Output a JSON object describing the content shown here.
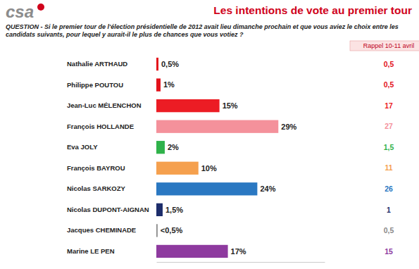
{
  "chart_data": {
    "type": "bar",
    "orientation": "horizontal",
    "logo": "csa",
    "title": "Les intentions de vote au premier tour",
    "subtitle": "QUESTION - Si le premier tour de l'élection présidentielle de 2012 avait lieu dimanche prochain et que vous aviez le choix entre les candidats suivants, pour lequel y aurait-il le plus de chances que vous votiez ?",
    "categories": [
      "Nathalie ARTHAUD",
      "Philippe POUTOU",
      "Jean-Luc MÉLENCHON",
      "François HOLLANDE",
      "Eva JOLY",
      "François BAYROU",
      "Nicolas SARKOZY",
      "Nicolas DUPONT-AIGNAN",
      "Jacques CHEMINADE",
      "Marine LE PEN"
    ],
    "values": [
      0.5,
      1,
      15,
      29,
      2,
      10,
      24,
      1.5,
      0.3,
      17
    ],
    "value_labels": [
      "0,5%",
      "1%",
      "15%",
      "29%",
      "2%",
      "10%",
      "24%",
      "1,5%",
      "<0,5%",
      "17%"
    ],
    "colors": [
      "#e3121b",
      "#e3121b",
      "#ec1c24",
      "#f4919b",
      "#2fb24a",
      "#f5a04e",
      "#2a78c2",
      "#1d2d6b",
      "#8a8a8a",
      "#8e3a9f"
    ],
    "data_labels": true,
    "tick_labels": "y",
    "xlim": [
      0,
      40
    ],
    "xticks": [],
    "rappel": {
      "label": "Rappel 10-11 avril",
      "values": [
        0.5,
        0.5,
        17,
        27,
        1.5,
        11,
        26,
        1,
        0.5,
        15
      ],
      "value_labels": [
        "0,5",
        "0,5",
        "17",
        "27",
        "1,5",
        "11",
        "26",
        "1",
        "0,5",
        "15"
      ]
    }
  }
}
